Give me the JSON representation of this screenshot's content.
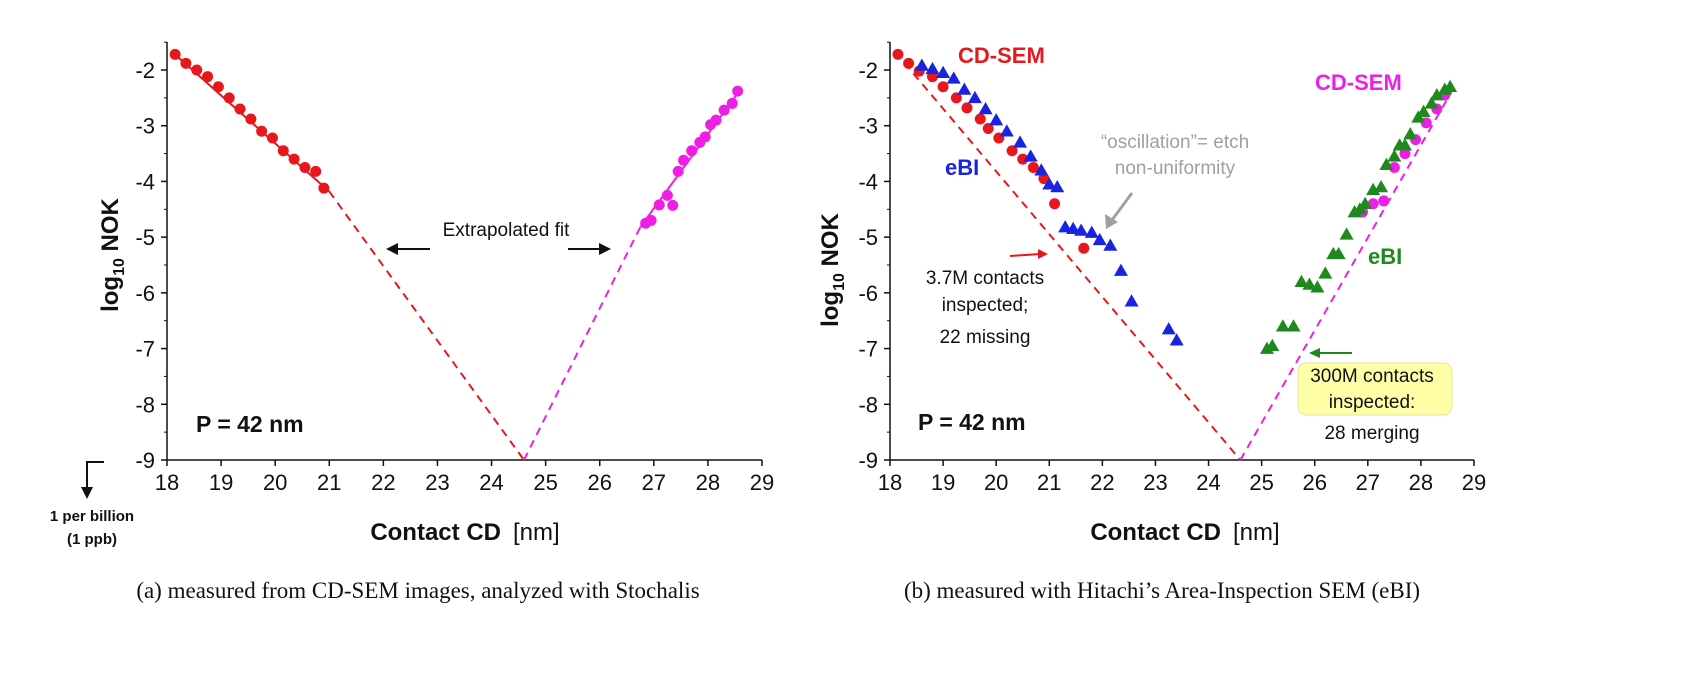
{
  "chart_data": [
    {
      "type": "scatter",
      "title": "",
      "caption": "(a) measured from CD-SEM images, analyzed with Stochalis",
      "xlabel_bold": "Contact CD",
      "xlabel_unit": "[nm]",
      "ylabel_main": "log",
      "ylabel_sub": "10",
      "ylabel_tail": "NOK",
      "xlim": [
        18,
        29
      ],
      "ylim": [
        -9,
        -1.6
      ],
      "xticks": [
        "18",
        "19",
        "20",
        "21",
        "22",
        "23",
        "24",
        "25",
        "26",
        "27",
        "28",
        "29"
      ],
      "yticks": [
        "-2",
        "-3",
        "-4",
        "-5",
        "-6",
        "-7",
        "-8",
        "-9"
      ],
      "pitch_label": "P = 42 nm",
      "annotation": "Extrapolated fit",
      "below_axis_note": [
        "1 per billion",
        "(1 ppb)"
      ],
      "colors": {
        "left": "#e8171c",
        "right": "#ee1ee6"
      },
      "series": [
        {
          "marker": "circle",
          "color": "#e8171c",
          "x": [
            18.15,
            18.35,
            18.55,
            18.75,
            18.95,
            19.15,
            19.35,
            19.55,
            19.75,
            19.95,
            20.15,
            20.35,
            20.55,
            20.75,
            20.9
          ],
          "y": [
            -1.72,
            -1.88,
            -2.0,
            -2.12,
            -2.3,
            -2.5,
            -2.7,
            -2.88,
            -3.1,
            -3.22,
            -3.45,
            -3.6,
            -3.75,
            -3.82,
            -4.12
          ]
        },
        {
          "marker": "circle",
          "color": "#ee1ee6",
          "x": [
            26.85,
            26.95,
            27.1,
            27.25,
            27.35,
            27.45,
            27.55,
            27.7,
            27.85,
            27.95,
            28.05,
            28.15,
            28.3,
            28.45,
            28.55
          ],
          "y": [
            -4.75,
            -4.7,
            -4.42,
            -4.25,
            -4.43,
            -3.82,
            -3.62,
            -3.45,
            -3.3,
            -3.2,
            -2.98,
            -2.9,
            -2.72,
            -2.6,
            -2.38
          ]
        }
      ],
      "fits": [
        {
          "color": "#e8171c",
          "solid": [
            [
              18.1,
              -1.68
            ],
            [
              21.0,
              -4.18
            ]
          ],
          "dashed": [
            [
              21.0,
              -4.18
            ],
            [
              24.6,
              -9.0
            ]
          ]
        },
        {
          "color": "#ee1ee6",
          "solid": [
            [
              26.75,
              -4.82
            ],
            [
              28.6,
              -2.35
            ]
          ],
          "dashed": [
            [
              24.6,
              -9.0
            ],
            [
              26.75,
              -4.82
            ]
          ]
        }
      ]
    },
    {
      "type": "scatter",
      "title": "",
      "caption": "(b) measured with Hitachi’s Area-Inspection SEM (eBI)",
      "xlabel_bold": "Contact CD",
      "xlabel_unit": "[nm]",
      "ylabel_main": "log",
      "ylabel_sub": "10",
      "ylabel_tail": "NOK",
      "xlim": [
        18,
        29
      ],
      "ylim": [
        -9,
        -1.6
      ],
      "xticks": [
        "18",
        "19",
        "20",
        "21",
        "22",
        "23",
        "24",
        "25",
        "26",
        "27",
        "28",
        "29"
      ],
      "yticks": [
        "-2",
        "-3",
        "-4",
        "-5",
        "-6",
        "-7",
        "-8",
        "-9"
      ],
      "pitch_label": "P = 42 nm",
      "labels": {
        "cdsem_left": "CD-SEM",
        "cdsem_right": "CD-SEM",
        "ebi_left": "eBI",
        "ebi_right": "eBI",
        "oscillation": [
          "“oscillation”= etch",
          "non-uniformity"
        ],
        "left_note": [
          "3.7M contacts",
          "inspected;",
          "22 missing"
        ],
        "right_note": [
          "300M contacts",
          "inspected:",
          "28 merging"
        ]
      },
      "colors": {
        "red": "#e8171c",
        "magenta": "#ee1ee6",
        "blue": "#1a24e0",
        "green": "#1e8a1e",
        "gray": "#a0a0a0",
        "note_bg": "#ffffa8"
      },
      "series": [
        {
          "marker": "circle",
          "color": "#e8171c",
          "x": [
            18.15,
            18.35,
            18.55,
            18.8,
            19.0,
            19.25,
            19.45,
            19.7,
            19.85,
            20.05,
            20.3,
            20.5,
            20.7,
            20.9,
            21.1,
            21.65
          ],
          "y": [
            -1.72,
            -1.88,
            -2.02,
            -2.12,
            -2.3,
            -2.5,
            -2.68,
            -2.88,
            -3.05,
            -3.22,
            -3.45,
            -3.6,
            -3.75,
            -3.95,
            -4.4,
            -5.2
          ]
        },
        {
          "marker": "triangle",
          "color": "#1a24e0",
          "x": [
            18.6,
            18.8,
            19.0,
            19.2,
            19.4,
            19.6,
            19.8,
            20.0,
            20.2,
            20.45,
            20.65,
            20.85,
            21.0,
            21.15,
            21.3,
            21.45,
            21.6,
            21.8,
            21.95,
            22.15,
            22.35,
            22.55,
            23.25,
            23.4
          ],
          "y": [
            -1.92,
            -1.98,
            -2.05,
            -2.15,
            -2.35,
            -2.5,
            -2.7,
            -2.9,
            -3.1,
            -3.3,
            -3.55,
            -3.8,
            -4.05,
            -4.1,
            -4.82,
            -4.85,
            -4.88,
            -4.92,
            -5.05,
            -5.15,
            -5.6,
            -6.15,
            -6.65,
            -6.85
          ]
        },
        {
          "marker": "circle",
          "color": "#ee1ee6",
          "x": [
            26.9,
            27.1,
            27.3,
            27.5,
            27.7,
            27.9,
            28.1,
            28.3,
            28.45
          ],
          "y": [
            -4.55,
            -4.4,
            -4.35,
            -3.75,
            -3.5,
            -3.25,
            -2.95,
            -2.7,
            -2.45
          ]
        },
        {
          "marker": "triangle",
          "color": "#1e8a1e",
          "x": [
            25.1,
            25.2,
            25.4,
            25.6,
            25.75,
            25.9,
            26.05,
            26.2,
            26.35,
            26.45,
            26.6,
            26.75,
            26.85,
            26.95,
            27.1,
            27.25,
            27.35,
            27.5,
            27.6,
            27.7,
            27.8,
            27.95,
            28.05,
            28.2,
            28.3,
            28.45,
            28.55
          ],
          "y": [
            -7.0,
            -6.95,
            -6.6,
            -6.6,
            -5.8,
            -5.85,
            -5.9,
            -5.65,
            -5.3,
            -5.3,
            -4.95,
            -4.55,
            -4.5,
            -4.4,
            -4.15,
            -4.1,
            -3.7,
            -3.55,
            -3.35,
            -3.35,
            -3.15,
            -2.85,
            -2.75,
            -2.6,
            -2.45,
            -2.35,
            -2.3
          ]
        }
      ],
      "fits": [
        {
          "color": "#e8171c",
          "solid": [],
          "dashed": [
            [
              18.1,
              -1.68
            ],
            [
              24.6,
              -9.0
            ]
          ]
        },
        {
          "color": "#ee1ee6",
          "solid": [],
          "dashed": [
            [
              24.6,
              -9.0
            ],
            [
              28.6,
              -2.35
            ]
          ]
        }
      ]
    }
  ]
}
